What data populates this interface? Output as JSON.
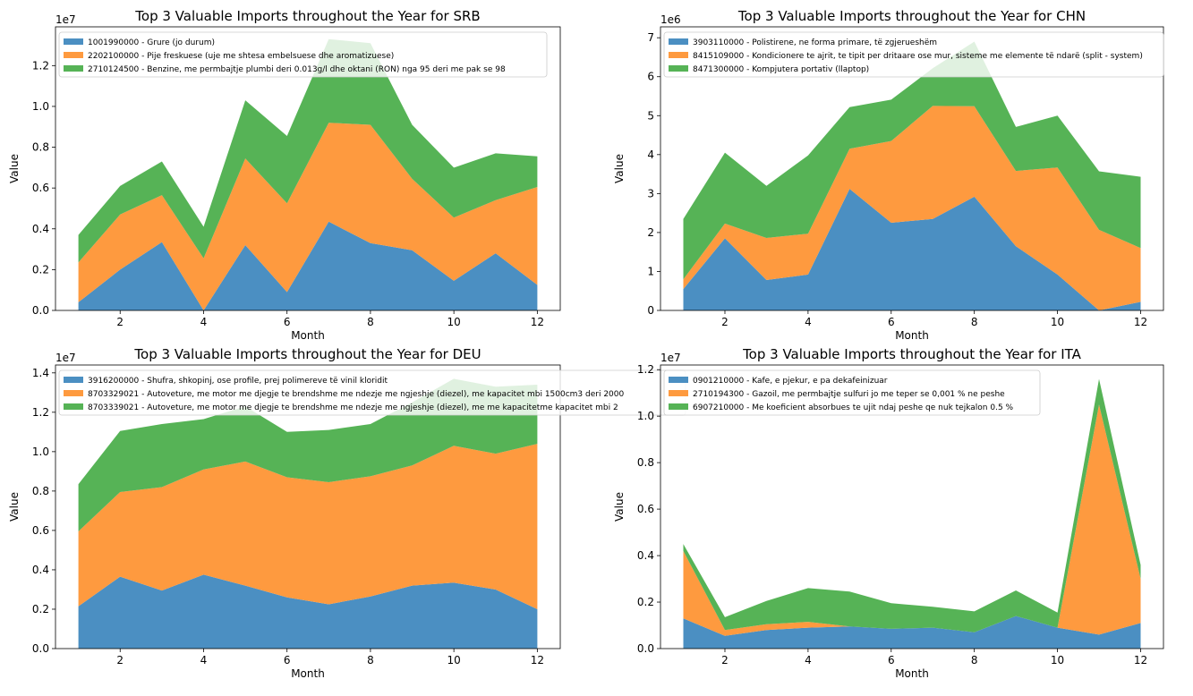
{
  "chart_data": [
    {
      "type": "area",
      "stacked": true,
      "title": "Top 3 Valuable Imports throughout the Year for SRB",
      "xlabel": "Month",
      "ylabel": "Value",
      "scale_label": "1e7",
      "x": [
        1,
        2,
        3,
        4,
        5,
        6,
        7,
        8,
        9,
        10,
        11,
        12
      ],
      "xticks": [
        2,
        4,
        6,
        8,
        10,
        12
      ],
      "xlim": [
        0.45,
        12.55
      ],
      "yticks": [
        0,
        0.2,
        0.4,
        0.6,
        0.8,
        1.0,
        1.2
      ],
      "ytick_labels": [
        "0.0",
        "0.2",
        "0.4",
        "0.6",
        "0.8",
        "1.0",
        "1.2"
      ],
      "ylim": [
        0,
        1.39
      ],
      "legend_position": "upper-left",
      "series": [
        {
          "name": "1001990000 - Grure (jo durum)",
          "values": [
            0.04,
            0.2,
            0.335,
            0.0,
            0.32,
            0.09,
            0.435,
            0.33,
            0.295,
            0.145,
            0.28,
            0.125
          ]
        },
        {
          "name": "2202100000 - Pije freskuese (uje me shtesa embelsuese dhe aromatizuese)",
          "values": [
            0.195,
            0.27,
            0.23,
            0.255,
            0.425,
            0.435,
            0.485,
            0.58,
            0.35,
            0.31,
            0.26,
            0.48
          ]
        },
        {
          "name": "2710124500 - Benzine, me permbajtje plumbi deri 0.013g/l dhe oktani (RON) nga 95 deri me pak se 98",
          "values": [
            0.135,
            0.14,
            0.165,
            0.155,
            0.285,
            0.33,
            0.41,
            0.4,
            0.265,
            0.245,
            0.23,
            0.15
          ]
        }
      ]
    },
    {
      "type": "area",
      "stacked": true,
      "title": "Top 3 Valuable Imports throughout the Year for CHN",
      "xlabel": "Month",
      "ylabel": "Value",
      "scale_label": "1e6",
      "x": [
        1,
        2,
        3,
        4,
        5,
        6,
        7,
        8,
        9,
        10,
        11,
        12
      ],
      "xticks": [
        2,
        4,
        6,
        8,
        10,
        12
      ],
      "xlim": [
        0.45,
        12.55
      ],
      "yticks": [
        0,
        1,
        2,
        3,
        4,
        5,
        6,
        7
      ],
      "ytick_labels": [
        "0",
        "1",
        "2",
        "3",
        "4",
        "5",
        "6",
        "7"
      ],
      "ylim": [
        0,
        7.28
      ],
      "legend_position": "upper-left",
      "series": [
        {
          "name": "3903110000 - Polistirene, ne forma primare, të zgjerueshëm",
          "values": [
            0.55,
            1.85,
            0.78,
            0.92,
            3.12,
            2.25,
            2.35,
            2.92,
            1.65,
            0.92,
            0.0,
            0.22
          ]
        },
        {
          "name": "8415109000 - Kondicionere te ajrit, te tipit per dritaare ose mur, sisteme me elemente të ndarë (split - system)",
          "values": [
            0.25,
            0.38,
            1.08,
            1.05,
            1.03,
            2.1,
            2.9,
            2.32,
            1.93,
            2.75,
            2.07,
            1.38
          ]
        },
        {
          "name": "8471300000 - Kompjutera portativ (llaptop)",
          "values": [
            1.55,
            1.82,
            1.34,
            2.01,
            1.07,
            1.06,
            0.97,
            1.66,
            1.13,
            1.33,
            1.5,
            1.83
          ]
        }
      ]
    },
    {
      "type": "area",
      "stacked": true,
      "title": "Top 3 Valuable Imports throughout the Year for DEU",
      "xlabel": "Month",
      "ylabel": "Value",
      "scale_label": "1e7",
      "x": [
        1,
        2,
        3,
        4,
        5,
        6,
        7,
        8,
        9,
        10,
        11,
        12
      ],
      "xticks": [
        2,
        4,
        6,
        8,
        10,
        12
      ],
      "xlim": [
        0.45,
        12.55
      ],
      "yticks": [
        0,
        0.2,
        0.4,
        0.6,
        0.8,
        1.0,
        1.2,
        1.4
      ],
      "ytick_labels": [
        "0.0",
        "0.2",
        "0.4",
        "0.6",
        "0.8",
        "1.0",
        "1.2",
        "1.4"
      ],
      "ylim": [
        0,
        1.44
      ],
      "legend_position": "upper-left",
      "series": [
        {
          "name": "3916200000 - Shufra, shkopinj, ose profile, prej polimereve të vinil kloridit",
          "values": [
            0.215,
            0.365,
            0.295,
            0.375,
            0.32,
            0.26,
            0.225,
            0.265,
            0.32,
            0.335,
            0.3,
            0.2
          ]
        },
        {
          "name": "8703329021 - Autoveture, me motor me djegje te brendshme me ndezje me ngjeshje (diezel), me kapacitet mbi 1500cm3 deri 2000",
          "values": [
            0.38,
            0.43,
            0.525,
            0.535,
            0.63,
            0.61,
            0.62,
            0.61,
            0.61,
            0.695,
            0.69,
            0.84
          ]
        },
        {
          "name": "8703339021 - Autoveture, me motor me djegje te brendshme me ndezje me ngjeshje (diezel), me me kapacitetme kapacitet mbi 2",
          "values": [
            0.24,
            0.31,
            0.32,
            0.255,
            0.28,
            0.23,
            0.265,
            0.265,
            0.32,
            0.34,
            0.34,
            0.3
          ]
        }
      ]
    },
    {
      "type": "area",
      "stacked": true,
      "title": "Top 3 Valuable Imports throughout the Year for ITA",
      "xlabel": "Month",
      "ylabel": "Value",
      "scale_label": "1e7",
      "x": [
        1,
        2,
        3,
        4,
        5,
        6,
        7,
        8,
        9,
        10,
        11,
        12
      ],
      "xticks": [
        2,
        4,
        6,
        8,
        10,
        12
      ],
      "xlim": [
        0.45,
        12.55
      ],
      "yticks": [
        0,
        0.2,
        0.4,
        0.6,
        0.8,
        1.0,
        1.2
      ],
      "ytick_labels": [
        "0.0",
        "0.2",
        "0.4",
        "0.6",
        "0.8",
        "1.0",
        "1.2"
      ],
      "ylim": [
        0,
        1.22
      ],
      "legend_position": "upper-left",
      "series": [
        {
          "name": "0901210000 - Kafe, e pjekur, e pa dekafeinizuar",
          "values": [
            0.13,
            0.055,
            0.08,
            0.09,
            0.095,
            0.085,
            0.09,
            0.07,
            0.14,
            0.09,
            0.06,
            0.11
          ]
        },
        {
          "name": "2710194300 - Gazoil, me permbajtje sulfuri jo me teper se 0,001 % ne peshe",
          "values": [
            0.29,
            0.025,
            0.025,
            0.025,
            0.0,
            0.0,
            0.0,
            0.0,
            0.0,
            0.0,
            0.99,
            0.19
          ]
        },
        {
          "name": "6907210000 - Me koeficient absorbues te ujit ndaj peshe qe nuk tejkalon 0.5 %",
          "values": [
            0.03,
            0.055,
            0.1,
            0.145,
            0.15,
            0.11,
            0.09,
            0.09,
            0.11,
            0.065,
            0.11,
            0.06
          ]
        }
      ]
    }
  ],
  "colors": [
    "#4b8fc2",
    "#fe9a3f",
    "#56b356"
  ]
}
